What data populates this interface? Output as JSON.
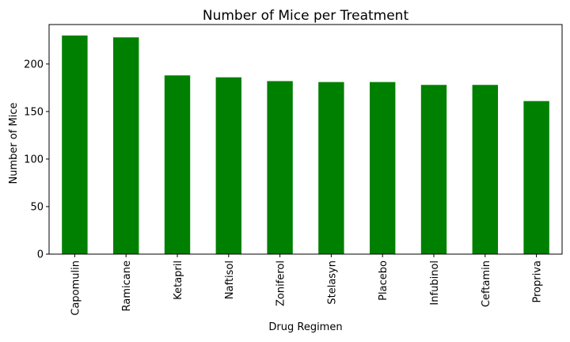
{
  "chart_data": {
    "type": "bar",
    "title": "Number of Mice per Treatment",
    "xlabel": "Drug Regimen",
    "ylabel": "Number of Mice",
    "categories": [
      "Capomulin",
      "Ramicane",
      "Ketapril",
      "Naftisol",
      "Zoniferol",
      "Stelasyn",
      "Placebo",
      "Infubinol",
      "Ceftamin",
      "Propriva"
    ],
    "values": [
      230,
      228,
      188,
      186,
      182,
      181,
      181,
      178,
      178,
      161
    ],
    "ylim": [
      0,
      241.5
    ],
    "yticks": [
      0,
      50,
      100,
      150,
      200
    ],
    "bar_color": "#008000",
    "grid": false,
    "legend": "none"
  }
}
